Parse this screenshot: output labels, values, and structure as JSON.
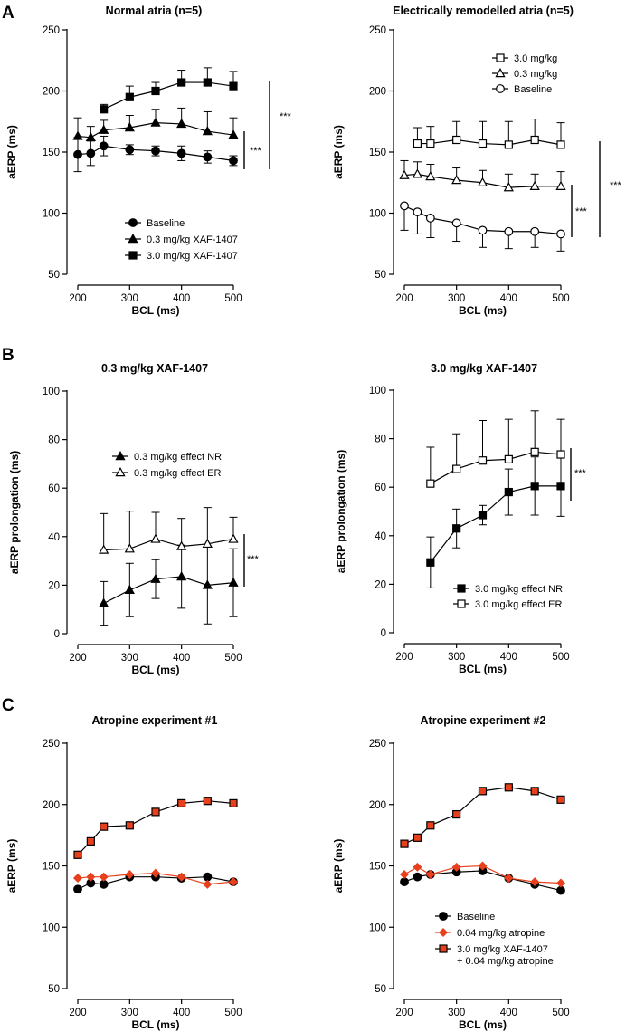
{
  "panel_letters": [
    "A",
    "B",
    "C"
  ],
  "chart_data": [
    {
      "id": "A1",
      "type": "line",
      "panel": "A",
      "title": "Normal atria (n=5)",
      "xlabel": "BCL (ms)",
      "ylabel": "aERP (ms)",
      "xlim": [
        200,
        500
      ],
      "ylim": [
        50,
        250
      ],
      "xticks": [
        200,
        300,
        400,
        500
      ],
      "yticks": [
        50,
        100,
        150,
        200,
        250
      ],
      "legend_position": "bottom-center",
      "series": [
        {
          "name": "Baseline",
          "marker": "circle",
          "fill": "#000000",
          "stroke": "#000000",
          "line": "#000000",
          "error_dir": "both",
          "x": [
            200,
            225,
            250,
            300,
            350,
            400,
            450,
            500
          ],
          "y": [
            148,
            149,
            155,
            152,
            151,
            149,
            146,
            143
          ],
          "err": [
            14,
            10,
            8,
            4,
            4,
            6,
            5,
            4
          ]
        },
        {
          "name": "0.3 mg/kg XAF-1407",
          "marker": "triangle",
          "fill": "#000000",
          "stroke": "#000000",
          "line": "#000000",
          "error_dir": "up",
          "x": [
            200,
            225,
            250,
            300,
            350,
            400,
            450,
            500
          ],
          "y": [
            163,
            162,
            168,
            170,
            174,
            173,
            167,
            164
          ],
          "err": [
            15,
            9,
            8,
            10,
            11,
            13,
            16,
            14
          ]
        },
        {
          "name": "3.0 mg/kg XAF-1407",
          "marker": "square",
          "fill": "#000000",
          "stroke": "#000000",
          "line": "#000000",
          "error_dir": "up",
          "x": [
            250,
            300,
            350,
            400,
            450,
            500
          ],
          "y": [
            185,
            195,
            200,
            207,
            207,
            204
          ],
          "err": [
            4,
            9,
            7,
            10,
            12,
            12
          ]
        }
      ],
      "significance": [
        {
          "label": "***"
        },
        {
          "label": "***"
        }
      ]
    },
    {
      "id": "A2",
      "type": "line",
      "panel": "A",
      "title": "Electrically remodelled atria (n=5)",
      "xlabel": "BCL (ms)",
      "ylabel": "aERP (ms)",
      "xlim": [
        200,
        500
      ],
      "ylim": [
        50,
        250
      ],
      "xticks": [
        200,
        300,
        400,
        500
      ],
      "yticks": [
        50,
        100,
        150,
        200,
        250
      ],
      "legend_position": "top-right",
      "series": [
        {
          "name": "3.0 mg/kg",
          "marker": "square",
          "fill": "#ffffff",
          "stroke": "#000000",
          "line": "#000000",
          "error_dir": "up",
          "x": [
            225,
            250,
            300,
            350,
            400,
            450,
            500
          ],
          "y": [
            157,
            157,
            160,
            157,
            156,
            160,
            156
          ],
          "err": [
            13,
            14,
            15,
            18,
            19,
            17,
            18
          ]
        },
        {
          "name": "0.3 mg/kg",
          "marker": "triangle",
          "fill": "#ffffff",
          "stroke": "#000000",
          "line": "#000000",
          "error_dir": "up",
          "x": [
            200,
            225,
            250,
            300,
            350,
            400,
            450,
            500
          ],
          "y": [
            131,
            132,
            130,
            127,
            125,
            121,
            122,
            122
          ],
          "err": [
            12,
            10,
            10,
            10,
            10,
            11,
            10,
            12
          ]
        },
        {
          "name": "Baseline",
          "marker": "circle",
          "fill": "#ffffff",
          "stroke": "#000000",
          "line": "#000000",
          "error_dir": "down",
          "x": [
            200,
            225,
            250,
            300,
            350,
            400,
            450,
            500
          ],
          "y": [
            106,
            101,
            96,
            92,
            86,
            85,
            85,
            83
          ],
          "err": [
            20,
            18,
            16,
            15,
            14,
            14,
            13,
            14
          ]
        }
      ],
      "significance": [
        {
          "label": "***"
        },
        {
          "label": "***"
        }
      ]
    },
    {
      "id": "B1",
      "type": "line",
      "panel": "B",
      "title": "0.3 mg/kg XAF-1407",
      "xlabel": "BCL (ms)",
      "ylabel": "aERP prolongation (ms)",
      "xlim": [
        200,
        500
      ],
      "ylim": [
        0,
        100
      ],
      "xticks": [
        200,
        300,
        400,
        500
      ],
      "yticks": [
        0,
        20,
        40,
        60,
        80,
        100
      ],
      "legend_position": "middle-center",
      "series": [
        {
          "name": "0.3 mg/kg effect NR",
          "marker": "triangle",
          "fill": "#000000",
          "stroke": "#000000",
          "line": "#000000",
          "error_dir": "both",
          "x": [
            250,
            300,
            350,
            400,
            450,
            500
          ],
          "y": [
            12.5,
            18,
            22.5,
            23.5,
            20,
            21
          ],
          "err": [
            9,
            11,
            8,
            13,
            16,
            14
          ]
        },
        {
          "name": "0.3 mg/kg effect ER",
          "marker": "triangle",
          "fill": "#ffffff",
          "stroke": "#000000",
          "line": "#000000",
          "error_dir": "up",
          "x": [
            250,
            300,
            350,
            400,
            450,
            500
          ],
          "y": [
            34.5,
            35,
            39,
            36,
            37,
            39
          ],
          "err": [
            15,
            15.5,
            11,
            11.5,
            15,
            9
          ]
        }
      ],
      "significance": [
        {
          "label": "***"
        }
      ]
    },
    {
      "id": "B2",
      "type": "line",
      "panel": "B",
      "title": "3.0 mg/kg XAF-1407",
      "xlabel": "BCL (ms)",
      "ylabel": "aERP prolongation (ms)",
      "xlim": [
        200,
        500
      ],
      "ylim": [
        0,
        100
      ],
      "xticks": [
        200,
        300,
        400,
        500
      ],
      "yticks": [
        0,
        20,
        40,
        60,
        80,
        100
      ],
      "legend_position": "bottom-right",
      "series": [
        {
          "name": "3.0 mg/kg effect NR",
          "marker": "square",
          "fill": "#000000",
          "stroke": "#000000",
          "line": "#000000",
          "error_dir": "both",
          "x": [
            250,
            300,
            350,
            400,
            450,
            500
          ],
          "y": [
            29,
            43,
            48.5,
            58,
            60.5,
            60.5
          ],
          "err": [
            10.5,
            8,
            4,
            9.5,
            12,
            12.5
          ]
        },
        {
          "name": "3.0 mg/kg effect ER",
          "marker": "square",
          "fill": "#ffffff",
          "stroke": "#000000",
          "line": "#000000",
          "error_dir": "up",
          "x": [
            250,
            300,
            350,
            400,
            450,
            500
          ],
          "y": [
            61.5,
            67.5,
            71,
            71.5,
            74.5,
            73.5
          ],
          "err": [
            15,
            14.5,
            16.5,
            16.5,
            17,
            14.5
          ]
        }
      ],
      "significance": [
        {
          "label": "***"
        }
      ]
    },
    {
      "id": "C1",
      "type": "line",
      "panel": "C",
      "title": "Atropine experiment #1",
      "xlabel": "BCL (ms)",
      "ylabel": "aERP (ms)",
      "xlim": [
        200,
        500
      ],
      "ylim": [
        50,
        250
      ],
      "xticks": [
        200,
        300,
        400,
        500
      ],
      "yticks": [
        50,
        100,
        150,
        200,
        250
      ],
      "legend_position": "none",
      "series": [
        {
          "name": "Baseline",
          "marker": "circle",
          "fill": "#000000",
          "stroke": "#000000",
          "line": "#000000",
          "error_dir": "none",
          "x": [
            200,
            225,
            250,
            300,
            350,
            400,
            450,
            500
          ],
          "y": [
            131,
            136,
            135,
            141,
            141,
            140,
            141,
            137
          ],
          "err": []
        },
        {
          "name": "0.04 mg/kg atropine",
          "marker": "diamond",
          "fill": "#e8401c",
          "stroke": "#e8401c",
          "line": "#e8401c",
          "error_dir": "none",
          "x": [
            200,
            225,
            250,
            300,
            350,
            400,
            450,
            500
          ],
          "y": [
            140,
            141,
            141,
            143,
            144,
            141,
            135,
            137
          ],
          "err": []
        },
        {
          "name": "3.0 mg/kg XAF-1407 + 0.04 mg/kg atropine",
          "marker": "square",
          "fill": "#e8401c",
          "stroke": "#000000",
          "line": "#000000",
          "error_dir": "none",
          "x": [
            200,
            225,
            250,
            300,
            350,
            400,
            450,
            500
          ],
          "y": [
            159,
            170,
            182,
            183,
            194,
            201,
            203,
            201
          ],
          "err": []
        }
      ],
      "significance": []
    },
    {
      "id": "C2",
      "type": "line",
      "panel": "C",
      "title": "Atropine experiment #2",
      "xlabel": "BCL (ms)",
      "ylabel": "aERP (ms)",
      "xlim": [
        200,
        500
      ],
      "ylim": [
        50,
        250
      ],
      "xticks": [
        200,
        300,
        400,
        500
      ],
      "yticks": [
        50,
        100,
        150,
        200,
        250
      ],
      "legend_position": "bottom-right",
      "series": [
        {
          "name": "Baseline",
          "marker": "circle",
          "fill": "#000000",
          "stroke": "#000000",
          "line": "#000000",
          "error_dir": "none",
          "x": [
            200,
            225,
            250,
            300,
            350,
            400,
            450,
            500
          ],
          "y": [
            137,
            141,
            143,
            145,
            146,
            140,
            135,
            130
          ],
          "err": []
        },
        {
          "name": "0.04 mg/kg atropine",
          "marker": "diamond",
          "fill": "#e8401c",
          "stroke": "#e8401c",
          "line": "#e8401c",
          "error_dir": "none",
          "x": [
            200,
            225,
            250,
            300,
            350,
            400,
            450,
            500
          ],
          "y": [
            143,
            149,
            143,
            149,
            150,
            140,
            137,
            136
          ],
          "err": []
        },
        {
          "name": "3.0 mg/kg XAF-1407 + 0.04 mg/kg atropine",
          "legend_lines": [
            "3.0 mg/kg XAF-1407",
            "+ 0.04 mg/kg atropine"
          ],
          "marker": "square",
          "fill": "#e8401c",
          "stroke": "#000000",
          "line": "#000000",
          "error_dir": "none",
          "x": [
            200,
            225,
            250,
            300,
            350,
            400,
            450,
            500
          ],
          "y": [
            168,
            173,
            183,
            192,
            211,
            214,
            211,
            204
          ],
          "err": []
        }
      ],
      "significance": []
    }
  ]
}
